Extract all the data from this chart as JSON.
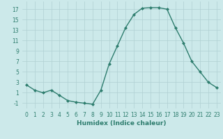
{
  "x": [
    0,
    1,
    2,
    3,
    4,
    5,
    6,
    7,
    8,
    9,
    10,
    11,
    12,
    13,
    14,
    15,
    16,
    17,
    18,
    19,
    20,
    21,
    22,
    23
  ],
  "y": [
    2.5,
    1.5,
    1.0,
    1.5,
    0.5,
    -0.5,
    -0.8,
    -1.0,
    -1.2,
    1.5,
    6.5,
    10.0,
    13.5,
    16.0,
    17.2,
    17.3,
    17.3,
    17.0,
    13.5,
    10.5,
    7.0,
    5.0,
    3.0,
    2.0
  ],
  "line_color": "#2e7d6e",
  "marker": "D",
  "marker_size": 2,
  "background_color": "#cce9ea",
  "grid_color": "#b0d0d2",
  "xlabel": "Humidex (Indice chaleur)",
  "xlim": [
    -0.5,
    23.5
  ],
  "ylim": [
    -2,
    18.5
  ],
  "xticks": [
    0,
    1,
    2,
    3,
    4,
    5,
    6,
    7,
    8,
    9,
    10,
    11,
    12,
    13,
    14,
    15,
    16,
    17,
    18,
    19,
    20,
    21,
    22,
    23
  ],
  "yticks": [
    -1,
    1,
    3,
    5,
    7,
    9,
    11,
    13,
    15,
    17
  ],
  "tick_fontsize": 5.5,
  "xlabel_fontsize": 6.5,
  "line_width": 1.0
}
